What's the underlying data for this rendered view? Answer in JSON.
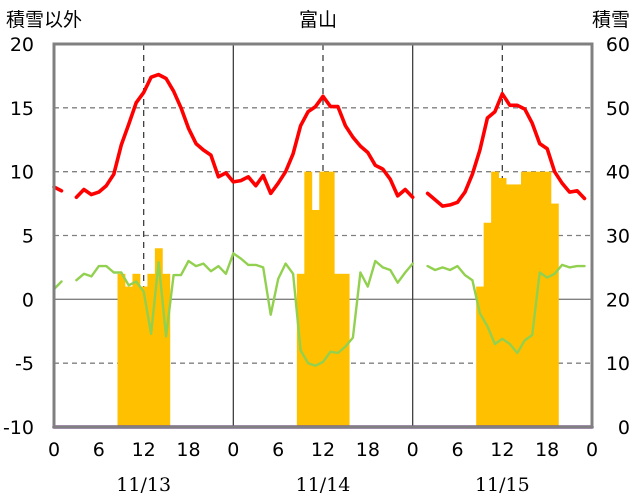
{
  "chart_data": {
    "type": "line",
    "title": "富山",
    "left_axis_label": "積雪以外",
    "right_axis_label": "積雪",
    "left_ylim": [
      -10,
      20
    ],
    "left_yticks": [
      "20",
      "15",
      "10",
      "5",
      "0",
      "-5",
      "-10"
    ],
    "right_ylim": [
      0,
      60
    ],
    "right_yticks": [
      "60",
      "50",
      "40",
      "30",
      "20",
      "10",
      "0"
    ],
    "x_tick_labels": [
      "0",
      "6",
      "12",
      "18",
      "0",
      "6",
      "12",
      "18",
      "0",
      "6",
      "12",
      "18",
      "0"
    ],
    "dates": [
      "11/13",
      "11/14",
      "11/15"
    ],
    "hours_per_day": 24,
    "grid": true,
    "colors": {
      "red": "#ff0000",
      "green": "#92d050",
      "bar": "#ffc000",
      "purple": "#7030a0",
      "frame": "#808080",
      "grid": "#808080"
    },
    "series": [
      {
        "axis": "left",
        "style": "line",
        "color_key": "red",
        "x": [
          0,
          1,
          3,
          4,
          5,
          6,
          7,
          8,
          9,
          10,
          11,
          12,
          13,
          14,
          15,
          16,
          17,
          18,
          19,
          20,
          21,
          22,
          23,
          24,
          25,
          26,
          27,
          28,
          29,
          30,
          31,
          32,
          33,
          34,
          35,
          36,
          37,
          38,
          39,
          40,
          41,
          42,
          43,
          44,
          45,
          46,
          47,
          48,
          50,
          51,
          52,
          53,
          54,
          55,
          56,
          57,
          58,
          59,
          60,
          61,
          62,
          63,
          64,
          65,
          66,
          67,
          68,
          69,
          70,
          71
        ],
        "y": [
          8.8,
          8.5,
          8.0,
          8.6,
          8.2,
          8.4,
          8.9,
          9.8,
          12.1,
          13.7,
          15.4,
          16.2,
          17.4,
          17.6,
          17.3,
          16.3,
          15.0,
          13.4,
          12.2,
          11.7,
          11.3,
          9.6,
          9.9,
          9.2,
          9.3,
          9.6,
          8.9,
          9.7,
          8.3,
          9.1,
          10.0,
          11.4,
          13.6,
          14.7,
          15.1,
          15.9,
          15.1,
          15.1,
          13.6,
          12.7,
          12.0,
          11.5,
          10.5,
          10.2,
          9.4,
          8.1,
          8.6,
          8.0,
          8.3,
          7.8,
          7.3,
          7.4,
          7.6,
          8.4,
          9.8,
          11.7,
          14.2,
          14.7,
          16.1,
          15.2,
          15.2,
          14.9,
          13.8,
          12.2,
          11.8,
          10.0,
          9.1,
          8.4,
          8.5,
          7.9
        ]
      },
      {
        "axis": "left",
        "style": "line",
        "color_key": "green",
        "x": [
          0,
          1,
          3,
          4,
          5,
          6,
          7,
          8,
          9,
          10,
          11,
          12,
          13,
          14,
          15,
          16,
          17,
          18,
          19,
          20,
          21,
          22,
          23,
          24,
          25,
          26,
          27,
          28,
          29,
          30,
          31,
          32,
          33,
          34,
          35,
          36,
          37,
          38,
          39,
          40,
          41,
          42,
          43,
          44,
          45,
          46,
          47,
          48,
          50,
          51,
          52,
          53,
          54,
          55,
          56,
          57,
          58,
          59,
          60,
          61,
          62,
          63,
          64,
          65,
          66,
          67,
          68,
          69,
          70,
          71
        ],
        "y": [
          0.8,
          1.4,
          1.5,
          2.0,
          1.8,
          2.6,
          2.6,
          2.1,
          2.1,
          1.1,
          1.4,
          0.6,
          -2.7,
          2.9,
          -2.9,
          1.9,
          1.9,
          3.0,
          2.6,
          2.8,
          2.2,
          2.6,
          2.0,
          3.6,
          3.2,
          2.7,
          2.7,
          2.5,
          -1.2,
          1.6,
          2.8,
          2.0,
          -4.0,
          -5.0,
          -5.2,
          -4.9,
          -4.1,
          -4.2,
          -3.7,
          -3.0,
          2.1,
          1.0,
          3.0,
          2.5,
          2.3,
          1.3,
          2.1,
          2.8,
          2.6,
          2.3,
          2.5,
          2.3,
          2.6,
          1.9,
          1.5,
          -1.1,
          -2.1,
          -3.5,
          -3.1,
          -3.5,
          -4.2,
          -3.2,
          -2.8,
          2.1,
          1.7,
          2.0,
          2.7,
          2.5,
          2.6,
          2.6
        ]
      },
      {
        "axis": "right",
        "style": "bar",
        "color_key": "bar",
        "x": [
          9,
          10,
          11,
          12,
          13,
          14,
          15,
          16,
          17,
          18,
          19,
          20,
          21,
          22,
          23,
          24,
          25,
          26,
          27,
          28,
          29,
          30,
          31,
          32,
          33,
          34,
          35,
          36,
          37,
          38,
          39,
          40,
          41,
          42,
          43,
          44,
          45,
          46,
          47,
          48,
          49,
          50,
          51,
          52,
          53,
          54,
          55,
          56,
          57,
          58,
          59,
          60,
          61,
          62,
          63,
          64,
          65,
          66,
          67,
          68,
          69,
          70,
          71
        ],
        "y": [
          24,
          22,
          24,
          22,
          24,
          28,
          24,
          0,
          0,
          0,
          0,
          0,
          0,
          0,
          0,
          0,
          0,
          0,
          0,
          0,
          0,
          0,
          0,
          0,
          24,
          40,
          34,
          40,
          40,
          24,
          24,
          0,
          0,
          0,
          0,
          0,
          0,
          0,
          0,
          0,
          0,
          0,
          0,
          0,
          0,
          0,
          0,
          0,
          22,
          32,
          40,
          39,
          38,
          38,
          40,
          40,
          40,
          40,
          35,
          0,
          0,
          0,
          0
        ]
      },
      {
        "axis": "left",
        "style": "line",
        "color_key": "purple",
        "x": [
          0,
          72
        ],
        "y": [
          -10,
          -10
        ]
      }
    ]
  }
}
